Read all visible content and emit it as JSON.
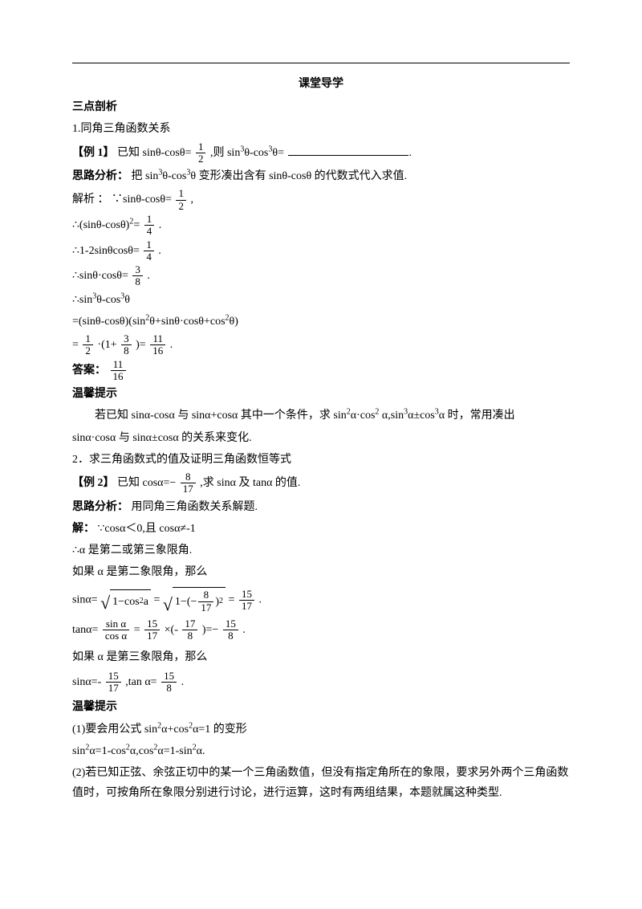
{
  "title": "课堂导学",
  "sec1": "三点剖析",
  "p1": "1.同角三角函数关系",
  "ex1_label": "【例 1】",
  "ex1_a": "已知 sinθ-cosθ=",
  "ex1_b": ",则 sin",
  "ex1_c": "θ-cos",
  "ex1_d": "θ=",
  "ex1_end": ".",
  "sl_label": "思路分析：",
  "sl1_a": "把 sin",
  "sl1_b": "θ-cos",
  "sl1_c": "θ 变形凑出含有 sinθ-cosθ 的代数式代入求值.",
  "jx": "解析 ：",
  "s1": "∵sinθ-cosθ=",
  "s1_end": ",",
  "s2a": "∴(sinθ-cosθ)",
  "s2b": "=",
  "s2_end": ".",
  "s3": "∴1-2sinθcosθ=",
  "s3_end": ".",
  "s4": "∴sinθ·cosθ=",
  "s4_end": ".",
  "s5a": "∴sin",
  "s5b": "θ-cos",
  "s5c": "θ",
  "s6a": "=(sinθ-cosθ)(sin",
  "s6b": "θ+sinθ·cosθ+cos",
  "s6c": "θ)",
  "s7a": "=",
  "s7b": "·(1+",
  "s7c": ")=",
  "s7_end": ".",
  "ans_label": "答案：",
  "tip": "温馨提示",
  "tip1a": "若已知 sinα-cosα 与 sinα+cosα 其中一个条件，求 sin",
  "tip1b": "α·cos",
  "tip1c": " α,sin",
  "tip1d": "α±cos",
  "tip1e": "α 时，常用凑出",
  "tip1f": "sinα·cosα 与 sinα±cosα 的关系来变化.",
  "p2": "2．求三角函数式的值及证明三角函数恒等式",
  "ex2_label": "【例 2】",
  "ex2_a": " 已知 cosα=−",
  "ex2_b": ",求 sinα 及 tanα 的值.",
  "sl2": "用同角三角函数关系解题.",
  "jie": "解：",
  "q1": "∵cosα＜0,且 cosα≠-1",
  "q2": "∴α 是第二或第三象限角.",
  "q3": "如果 α 是第二象限角，那么",
  "r1a": "sinα=",
  "r1b": "1−cos",
  "r1c": " a",
  "r1d": "=",
  "r1e": "1−(−",
  "r1f": ")",
  "r1g": "=",
  "r1_end": ".",
  "r2a": "tanα=",
  "r2b": "=",
  "r2c": "×(-",
  "r2d": ")=−",
  "r2_end": ".",
  "q4": "如果 α 是第三象限角，那么",
  "r3a": "sinα=-",
  "r3b": ",tan α=",
  "r3_end": ".",
  "tip2_1a": " (1)要会用公式 sin",
  "tip2_1b": "α+cos",
  "tip2_1c": "α=1 的变形",
  "tip2_2a": "sin",
  "tip2_2b": "α=1-cos",
  "tip2_2c": "α,cos",
  "tip2_2d": "α=1-sin",
  "tip2_2e": "α.",
  "tip2_3": "(2)若已知正弦、余弦正切中的某一个三角函数值，但没有指定角所在的象限，要求另外两个三角函数值时，可按角所在象限分别进行讨论，进行运算，这时有两组结果，本题就属这种类型.",
  "f": {
    "half_n": "1",
    "half_d": "2",
    "q_n": "1",
    "q_d": "4",
    "te_n": "3",
    "te_d": "8",
    "el_n": "11",
    "el_d": "16",
    "e17_n": "8",
    "e17_d": "17",
    "f15_17n": "15",
    "f15_17d": "17",
    "f17_8n": "17",
    "f17_8d": "8",
    "f15_8n": "15",
    "f15_8d": "8",
    "sa_n": "sin α",
    "sa_d": "cos α"
  }
}
